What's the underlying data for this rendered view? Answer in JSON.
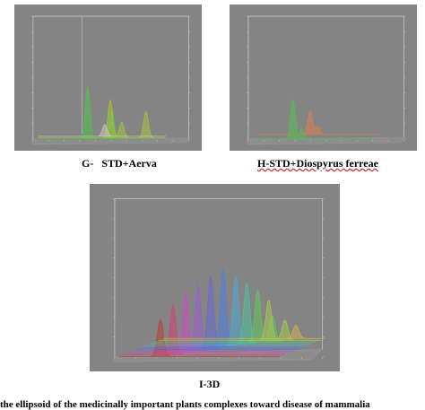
{
  "panels": [
    {
      "id": "G",
      "caption_prefix": "G-",
      "caption_main": "STD+Aerva",
      "chart_data": {
        "type": "area",
        "view": "3d",
        "tracks": [
          {
            "color": "#4fc24f",
            "peaks": [
              [
                0.4,
                0.4
              ],
              [
                0.59,
                0.22
              ]
            ]
          },
          {
            "color": "#a8c43a",
            "peaks": [
              [
                0.57,
                0.29
              ],
              [
                0.66,
                0.12
              ],
              [
                0.85,
                0.2
              ]
            ]
          },
          {
            "color": "#c9c9c9",
            "peaks": [
              [
                0.52,
                0.09
              ]
            ]
          }
        ]
      }
    },
    {
      "id": "H",
      "caption_prefix": "",
      "caption_main": "H-STD+Diospyrus ferreae",
      "chart_data": {
        "type": "area",
        "view": "3d",
        "tracks": [
          {
            "color": "#4fc24f",
            "peaks": [
              [
                0.33,
                0.3
              ],
              [
                0.4,
                0.08
              ]
            ]
          },
          {
            "color": "#d97f4f",
            "peaks": [
              [
                0.44,
                0.18
              ],
              [
                0.5,
                0.06
              ]
            ]
          }
        ]
      }
    },
    {
      "id": "I",
      "caption_prefix": "",
      "caption_main": "I-3D",
      "chart_data": {
        "type": "area",
        "view": "3d",
        "tracks": [
          {
            "color": "#c23c3c",
            "peaks": [
              [
                0.26,
                0.22
              ]
            ]
          },
          {
            "color": "#d4447a",
            "peaks": [
              [
                0.31,
                0.3
              ]
            ]
          },
          {
            "color": "#c74fc2",
            "peaks": [
              [
                0.36,
                0.36
              ]
            ]
          },
          {
            "color": "#9a5fd1",
            "peaks": [
              [
                0.41,
                0.4
              ]
            ]
          },
          {
            "color": "#6a6ad8",
            "peaks": [
              [
                0.46,
                0.44
              ]
            ]
          },
          {
            "color": "#4f7fe0",
            "peaks": [
              [
                0.51,
                0.46
              ]
            ]
          },
          {
            "color": "#4fa7d4",
            "peaks": [
              [
                0.56,
                0.42
              ]
            ]
          },
          {
            "color": "#4fc29a",
            "peaks": [
              [
                0.6,
                0.36
              ]
            ]
          },
          {
            "color": "#5fc95f",
            "peaks": [
              [
                0.64,
                0.31
              ],
              [
                0.73,
                0.16
              ]
            ]
          },
          {
            "color": "#a7c94f",
            "peaks": [
              [
                0.68,
                0.24
              ],
              [
                0.78,
                0.12
              ]
            ]
          },
          {
            "color": "#d4b14f",
            "peaks": [
              [
                0.82,
                0.08
              ]
            ]
          }
        ]
      }
    }
  ],
  "footer": {
    "text": "the ellipsoid of the medicinally important plants complexes toward disease of mammalia"
  }
}
